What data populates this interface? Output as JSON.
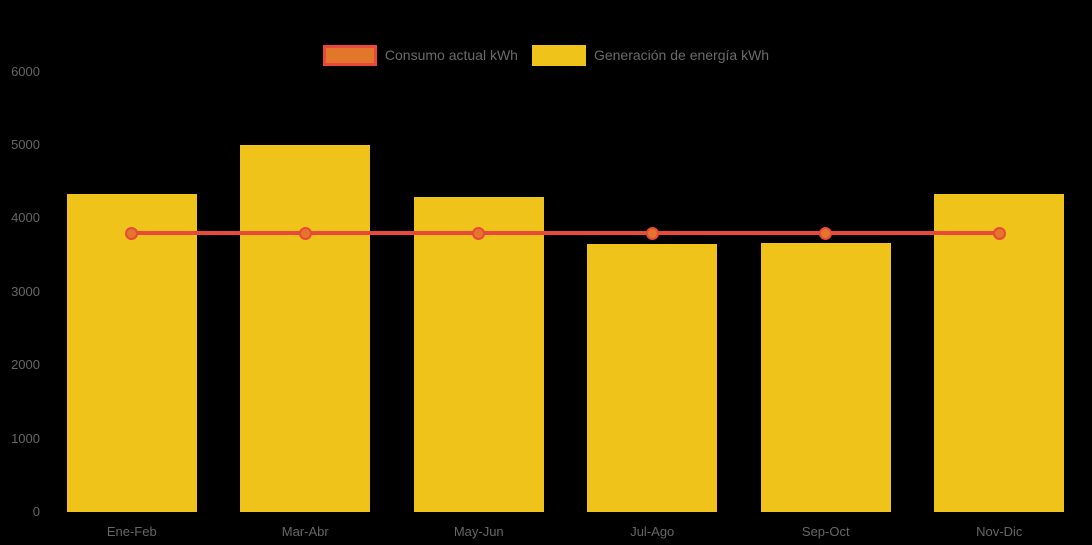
{
  "page": {
    "background_color": "#000000",
    "axis_text_color": "#666666",
    "legend_text_color": "#6b6b6b"
  },
  "legend": {
    "position": "top-center",
    "items": [
      {
        "label": "Consumo actual kWh",
        "series_type": "line",
        "swatch_fill": "#e2772b",
        "swatch_border": "#e8493a"
      },
      {
        "label": "Generación de energía kWh",
        "series_type": "bar",
        "swatch_fill": "#efc319",
        "swatch_border": "#efc319"
      }
    ]
  },
  "chart_data": {
    "type": "bar+line",
    "title": "",
    "xlabel": "",
    "ylabel": "",
    "categories": [
      "Ene-Feb",
      "Mar-Abr",
      "May-Jun",
      "Jul-Ago",
      "Sep-Oct",
      "Nov-Dic"
    ],
    "series": [
      {
        "name": "Consumo actual kWh",
        "type": "line",
        "color": "#e8493a",
        "point_fill": "#e2772b",
        "point_border": "#e8493a",
        "values": [
          3800,
          3800,
          3800,
          3800,
          3800,
          3800
        ]
      },
      {
        "name": "Generación de energía kWh",
        "type": "bar",
        "color": "#efc319",
        "values": [
          4330,
          5000,
          4290,
          3650,
          3670,
          4330
        ]
      }
    ],
    "ylim": [
      0,
      6000
    ],
    "yticks": [
      "0",
      "1000",
      "2000",
      "3000",
      "4000",
      "5000",
      "6000"
    ],
    "grid": "faint-dark",
    "legend_position": "top-center"
  }
}
